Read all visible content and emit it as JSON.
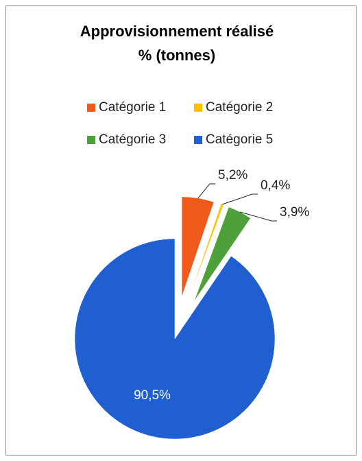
{
  "chart_data": {
    "type": "pie",
    "title": [
      "Approvisionnement réalisé",
      "% (tonnes)"
    ],
    "categories": [
      "Catégorie 1",
      "Catégorie 2",
      "Catégorie 3",
      "Catégorie 5"
    ],
    "values": [
      5.2,
      0.4,
      3.9,
      90.5
    ],
    "value_labels": [
      "5,2%",
      "0,4%",
      "3,9%",
      "90,5%"
    ],
    "colors": [
      "#f05a1a",
      "#ffc000",
      "#4ea03a",
      "#1f5fd0"
    ]
  }
}
